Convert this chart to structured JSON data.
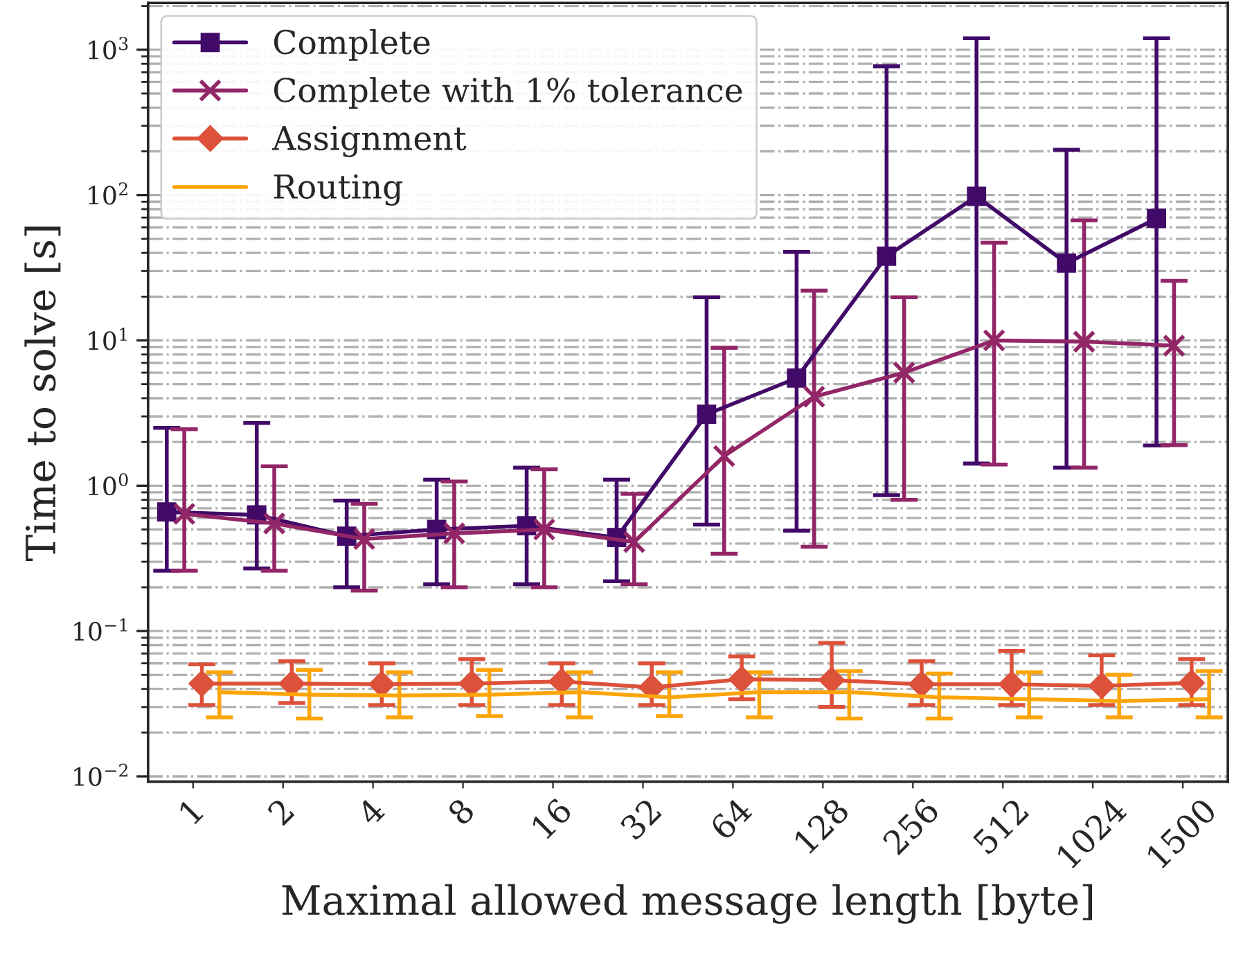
{
  "chart_data": {
    "type": "line",
    "xlabel": "Maximal allowed message length [byte]",
    "ylabel": "Time to solve [s]",
    "categories": [
      "1",
      "2",
      "4",
      "8",
      "16",
      "32",
      "64",
      "128",
      "256",
      "512",
      "1024",
      "1500"
    ],
    "log": "y",
    "ylim": [
      0.0092,
      2100
    ],
    "yticks": [
      {
        "value": 0.01,
        "label": "10$^{−2}$"
      },
      {
        "value": 0.1,
        "label": "10$^{−1}$"
      },
      {
        "value": 1,
        "label": "10$^{0}$"
      },
      {
        "value": 10,
        "label": "10$^{1}$"
      },
      {
        "value": 100,
        "label": "10$^{2}$"
      },
      {
        "value": 1000,
        "label": "10$^{3}$"
      }
    ],
    "grid": "y",
    "legend": "top left",
    "series": [
      {
        "name": "Complete",
        "color": "#420a68",
        "marker": "square",
        "values": [
          0.66,
          0.63,
          0.45,
          0.5,
          0.53,
          0.44,
          3.1,
          5.5,
          38,
          98,
          34,
          69
        ],
        "errors": [
          [
            0.26,
            2.5
          ],
          [
            0.27,
            2.7
          ],
          [
            0.2,
            0.79
          ],
          [
            0.21,
            1.1
          ],
          [
            0.21,
            1.33
          ],
          [
            0.22,
            1.1
          ],
          [
            0.54,
            19.8
          ],
          [
            0.49,
            40.6
          ],
          [
            0.86,
            770
          ],
          [
            1.42,
            1200
          ],
          [
            1.33,
            205
          ],
          [
            1.89,
            1200
          ]
        ]
      },
      {
        "name": "Complete with 1% tolerance",
        "color": "#932667",
        "marker": "cross",
        "values": [
          0.64,
          0.55,
          0.43,
          0.47,
          0.5,
          0.41,
          1.6,
          4.1,
          6.0,
          10,
          9.8,
          9.2
        ],
        "errors": [
          [
            0.26,
            2.45
          ],
          [
            0.26,
            1.36
          ],
          [
            0.19,
            0.75
          ],
          [
            0.2,
            1.07
          ],
          [
            0.2,
            1.3
          ],
          [
            0.21,
            0.88
          ],
          [
            0.34,
            8.9
          ],
          [
            0.38,
            22
          ],
          [
            0.8,
            19.8
          ],
          [
            1.4,
            47
          ],
          [
            1.33,
            67
          ],
          [
            1.9,
            25.7
          ]
        ]
      },
      {
        "name": "Assignment",
        "color": "#dd513a",
        "marker": "diamond",
        "values": [
          0.0435,
          0.0435,
          0.043,
          0.0435,
          0.045,
          0.041,
          0.0466,
          0.046,
          0.043,
          0.043,
          0.042,
          0.044
        ],
        "errors": [
          [
            0.031,
            0.059
          ],
          [
            0.032,
            0.062
          ],
          [
            0.031,
            0.06
          ],
          [
            0.031,
            0.064
          ],
          [
            0.031,
            0.06
          ],
          [
            0.031,
            0.06
          ],
          [
            0.034,
            0.067
          ],
          [
            0.03,
            0.083
          ],
          [
            0.031,
            0.062
          ],
          [
            0.031,
            0.073
          ],
          [
            0.031,
            0.068
          ],
          [
            0.031,
            0.064
          ]
        ]
      },
      {
        "name": "Routing",
        "color": "#fca50a",
        "marker": "none",
        "values": [
          0.038,
          0.0365,
          0.036,
          0.0365,
          0.038,
          0.035,
          0.038,
          0.038,
          0.035,
          0.034,
          0.033,
          0.034
        ],
        "errors": [
          [
            0.0255,
            0.052
          ],
          [
            0.025,
            0.054
          ],
          [
            0.0255,
            0.052
          ],
          [
            0.026,
            0.054
          ],
          [
            0.0255,
            0.052
          ],
          [
            0.026,
            0.052
          ],
          [
            0.0255,
            0.052
          ],
          [
            0.025,
            0.053
          ],
          [
            0.025,
            0.051
          ],
          [
            0.0255,
            0.052
          ],
          [
            0.0255,
            0.05
          ],
          [
            0.0255,
            0.053
          ]
        ]
      }
    ]
  }
}
